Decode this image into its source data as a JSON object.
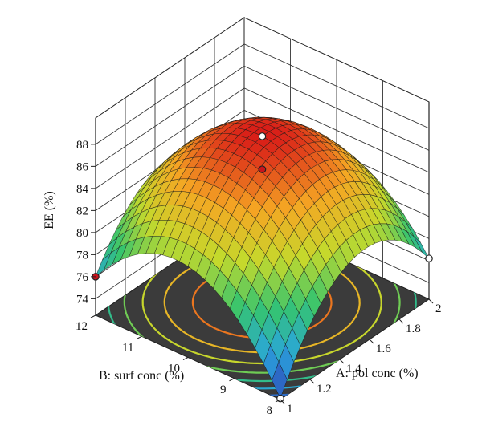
{
  "chart_data": {
    "type": "surface3d",
    "title": "",
    "zlabel": "EE (%)",
    "xlabel": "A: pol conc (%)",
    "ylabel": "B: surf conc (%)",
    "z_ticks": [
      74,
      76,
      78,
      80,
      82,
      84,
      86,
      88
    ],
    "x_ticks": [
      "1",
      "1.2",
      "1.4",
      "1.6",
      "1.8",
      "2"
    ],
    "y_ticks": [
      "8",
      "9",
      "10",
      "11",
      "12"
    ],
    "xlim": [
      1,
      2
    ],
    "ylim": [
      8,
      12
    ],
    "zlim": [
      72.5,
      88
    ],
    "surface": {
      "model": "quadratic",
      "center": {
        "A": 1.5,
        "B": 10
      },
      "z_center": 88.0,
      "z_corner_A1_B8": 72.6,
      "z_corner_A1_B12": 76.0,
      "z_corner_A2_B8": 76.2,
      "z_corner_A2_B12": 75.5
    },
    "design_points": [
      {
        "A": 1.5,
        "B": 10,
        "EE": 88.0,
        "position": "above surface"
      },
      {
        "A": 1.5,
        "B": 10,
        "EE": 85.0,
        "position": "below surface"
      },
      {
        "A": 1,
        "B": 8,
        "EE": 72.6,
        "position": "above surface"
      },
      {
        "A": 1,
        "B": 12,
        "EE": 76.0,
        "position": "below surface"
      },
      {
        "A": 2,
        "B": 8,
        "EE": 76.2,
        "position": "above surface"
      }
    ],
    "colormap": [
      "#2f3cb4",
      "#2aa5dd",
      "#35c46f",
      "#c5d92c",
      "#f5a623",
      "#d91e18"
    ]
  }
}
